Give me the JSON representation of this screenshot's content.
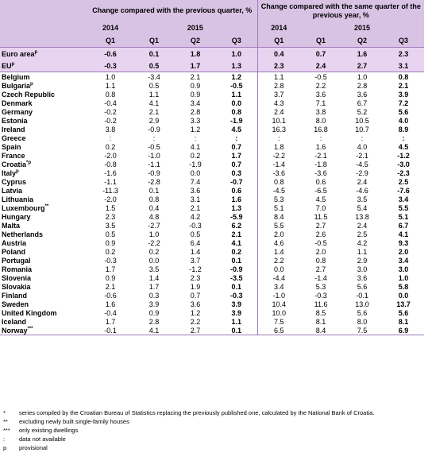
{
  "header": {
    "group1": "Change compared with the previous quarter, %",
    "group2": "Change compared with the same quarter of the previous year, %",
    "years": [
      "2014",
      "2015",
      "2014",
      "2015"
    ],
    "quarters": [
      "Q1",
      "Q1",
      "Q2",
      "Q3",
      "Q1",
      "Q1",
      "Q2",
      "Q3"
    ]
  },
  "highlight_rows": [
    {
      "name": "Euro area",
      "sup": "p",
      "values": [
        "-0.6",
        "0.1",
        "1.8",
        "1.0",
        "0.4",
        "0.7",
        "1.6",
        "2.3"
      ]
    },
    {
      "name": "EU",
      "sup": "p",
      "values": [
        "-0.3",
        "0.5",
        "1.7",
        "1.3",
        "2.3",
        "2.4",
        "2.7",
        "3.1"
      ]
    }
  ],
  "rows": [
    {
      "name": "Belgium",
      "sup": "",
      "values": [
        "1.0",
        "-3.4",
        "2.1",
        "1.2",
        "1.1",
        "-0.5",
        "1.0",
        "0.8"
      ]
    },
    {
      "name": "Bulgaria",
      "sup": "p",
      "values": [
        "1.1",
        "0.5",
        "0.9",
        "-0.5",
        "2.8",
        "2.2",
        "2.8",
        "2.1"
      ]
    },
    {
      "name": "Czech Republic",
      "sup": "",
      "values": [
        "0.8",
        "1.1",
        "0.9",
        "1.1",
        "3.7",
        "3.6",
        "3.6",
        "3.9"
      ]
    },
    {
      "name": "Denmark",
      "sup": "",
      "values": [
        "-0.4",
        "4.1",
        "3.4",
        "0.0",
        "4.3",
        "7.1",
        "6.7",
        "7.2"
      ]
    },
    {
      "name": "Germany",
      "sup": "",
      "values": [
        "-0.2",
        "2.1",
        "2.8",
        "0.8",
        "2.4",
        "3.8",
        "5.2",
        "5.6"
      ]
    },
    {
      "name": "Estonia",
      "sup": "",
      "values": [
        "-0.2",
        "2.9",
        "3.3",
        "-1.9",
        "10.1",
        "8.0",
        "10.5",
        "4.0"
      ]
    },
    {
      "name": "Ireland",
      "sup": "",
      "values": [
        "3.8",
        "-0.9",
        "1.2",
        "4.5",
        "16.3",
        "16.8",
        "10.7",
        "8.9"
      ]
    },
    {
      "name": "Greece",
      "sup": "",
      "values": [
        ":",
        ":",
        ":",
        ":",
        ":",
        ":",
        ":",
        ":"
      ]
    },
    {
      "name": "Spain",
      "sup": "",
      "values": [
        "0.2",
        "-0.5",
        "4.1",
        "0.7",
        "1.8",
        "1.6",
        "4.0",
        "4.5"
      ]
    },
    {
      "name": "France",
      "sup": "",
      "values": [
        "-2.0",
        "-1.0",
        "0.2",
        "1.7",
        "-2.2",
        "-2.1",
        "-2.1",
        "-1.2"
      ]
    },
    {
      "name": "Croatia",
      "sup": "*p",
      "values": [
        "-0.8",
        "-1.1",
        "-1.9",
        "0.7",
        "-1.4",
        "-1.8",
        "-4.5",
        "-3.0"
      ]
    },
    {
      "name": "Italy",
      "sup": "p",
      "values": [
        "-1.6",
        "-0.9",
        "0.0",
        "0.3",
        "-3.6",
        "-3.6",
        "-2.9",
        "-2.3"
      ]
    },
    {
      "name": "Cyprus",
      "sup": "",
      "values": [
        "-1.1",
        "-2.8",
        "7.4",
        "-0.7",
        "0.8",
        "0.6",
        "2.4",
        "2.5"
      ]
    },
    {
      "name": "Latvia",
      "sup": "",
      "values": [
        "-11.3",
        "0.1",
        "3.6",
        "0.6",
        "-4.5",
        "-6.5",
        "-4.6",
        "-7.6"
      ]
    },
    {
      "name": "Lithuania",
      "sup": "",
      "values": [
        "-2.0",
        "0.8",
        "3.1",
        "1.6",
        "5.3",
        "4.5",
        "3.5",
        "3.4"
      ]
    },
    {
      "name": "Luxembourg",
      "sup": "**",
      "values": [
        "1.5",
        "0.4",
        "2.1",
        "1.3",
        "5.1",
        "7.0",
        "5.4",
        "5.5"
      ]
    },
    {
      "name": "Hungary",
      "sup": "",
      "values": [
        "2.3",
        "4.8",
        "4.2",
        "-5.9",
        "8.4",
        "11.5",
        "13.8",
        "5.1"
      ]
    },
    {
      "name": "Malta",
      "sup": "",
      "values": [
        "3.5",
        "-2.7",
        "-0.3",
        "6.2",
        "5.5",
        "2.7",
        "2.4",
        "6.7"
      ]
    },
    {
      "name": "Netherlands",
      "sup": "",
      "values": [
        "0.5",
        "1.0",
        "0.5",
        "2.1",
        "2.0",
        "2.6",
        "2.5",
        "4.1"
      ]
    },
    {
      "name": "Austria",
      "sup": "",
      "values": [
        "0.9",
        "-2.2",
        "6.4",
        "4.1",
        "4.6",
        "-0.5",
        "4.2",
        "9.3"
      ]
    },
    {
      "name": "Poland",
      "sup": "",
      "values": [
        "0.2",
        "0.2",
        "1.4",
        "0.2",
        "1.4",
        "2.0",
        "1.1",
        "2.0"
      ]
    },
    {
      "name": "Portugal",
      "sup": "",
      "values": [
        "-0.3",
        "0.0",
        "3.7",
        "0.1",
        "2.2",
        "0.8",
        "2.9",
        "3.4"
      ]
    },
    {
      "name": "Romania",
      "sup": "",
      "values": [
        "1.7",
        "3.5",
        "-1.2",
        "-0.9",
        "0.0",
        "2.7",
        "3.0",
        "3.0"
      ]
    },
    {
      "name": "Slovenia",
      "sup": "",
      "values": [
        "0.9",
        "1.4",
        "2.3",
        "-3.5",
        "-4.4",
        "-1.4",
        "3.6",
        "1.0"
      ]
    },
    {
      "name": "Slovakia",
      "sup": "",
      "values": [
        "2.1",
        "1.7",
        "1.9",
        "0.1",
        "3.4",
        "5.3",
        "5.6",
        "5.8"
      ]
    },
    {
      "name": "Finland",
      "sup": "",
      "values": [
        "-0.6",
        "0.3",
        "0.7",
        "-0.3",
        "-1.0",
        "-0.3",
        "-0.1",
        "0.0"
      ]
    },
    {
      "name": "Sweden",
      "sup": "",
      "values": [
        "1.6",
        "3.9",
        "3.6",
        "3.9",
        "10.4",
        "11.6",
        "13.0",
        "13.7"
      ]
    },
    {
      "name": "United Kingdom",
      "sup": "",
      "values": [
        "-0.4",
        "0.9",
        "1.2",
        "3.9",
        "10.0",
        "8.5",
        "5.6",
        "5.6"
      ]
    },
    {
      "name": "Iceland",
      "sup": "",
      "values": [
        "1.7",
        "2.8",
        "2.2",
        "1.1",
        "7.5",
        "8.1",
        "8.0",
        "8.1"
      ]
    },
    {
      "name": "Norway",
      "sup": "***",
      "values": [
        "-0.1",
        "4.1",
        "2.7",
        "0.1",
        "6.5",
        "8.4",
        "7.5",
        "6.9"
      ]
    }
  ],
  "notes": [
    {
      "sym": "*",
      "text": "series compiled by the Croatian Bureau of Statistics replacing the previously published one, calculated by the National Bank of Croatia."
    },
    {
      "sym": "**",
      "text": "excluding newly built single-family houses"
    },
    {
      "sym": "***",
      "text": "only existing dwellings"
    },
    {
      "sym": ":",
      "text": "data not available"
    },
    {
      "sym": "p",
      "text": "provisional"
    }
  ],
  "colors": {
    "header_bg": "#d9c3e5",
    "highlight_bg": "#e8d4f0",
    "border": "#a07ab8"
  }
}
